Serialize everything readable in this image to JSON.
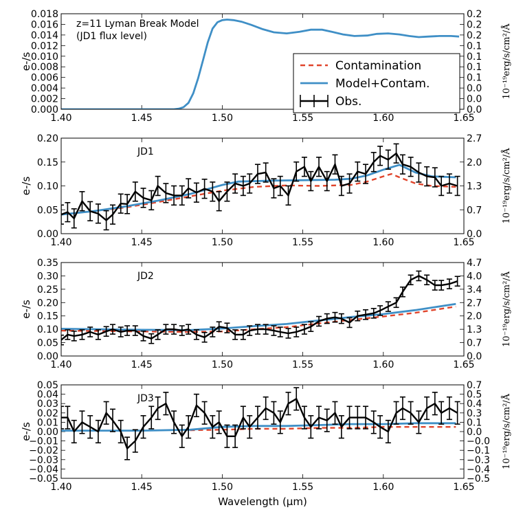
{
  "figure": {
    "xlabel": "Wavelength (μm)",
    "colors": {
      "contamination": "#e0442b",
      "model": "#3f8fc6",
      "observed": "#000000"
    },
    "legend": {
      "placement": "lower-right of top panel",
      "entries": [
        {
          "key": "contamination",
          "label": "Contamination",
          "style": "dashed-line"
        },
        {
          "key": "model",
          "label": "Model+Contam.",
          "style": "solid-line"
        },
        {
          "key": "observed",
          "label": "Obs.",
          "style": "errorbar"
        }
      ]
    }
  },
  "chart_data": [
    {
      "type": "line",
      "annotation": [
        "z=11 Lyman Break Model",
        "(JD1 flux level)"
      ],
      "xlabel": "",
      "ylabel": "e-/s",
      "y2label": "10⁻¹⁹erg/s/cm²/Å",
      "xlim": [
        1.4,
        1.65
      ],
      "ylim": [
        0.0,
        0.018
      ],
      "xticks": [
        "1.40",
        "1.45",
        "1.50",
        "1.55",
        "1.60",
        "1.65"
      ],
      "yticks": [
        "0.000",
        "0.002",
        "0.004",
        "0.006",
        "0.008",
        "0.010",
        "0.012",
        "0.014",
        "0.016",
        "0.018"
      ],
      "y2ticks": [
        "0.0",
        "0.0",
        "0.0",
        "0.1",
        "0.1",
        "0.1",
        "0.1",
        "0.2",
        "0.2",
        "0.2"
      ],
      "series": [
        {
          "key": "model",
          "x": [
            1.4,
            1.47,
            1.473,
            1.476,
            1.479,
            1.482,
            1.485,
            1.488,
            1.491,
            1.494,
            1.497,
            1.5,
            1.503,
            1.507,
            1.512,
            1.518,
            1.525,
            1.532,
            1.54,
            1.548,
            1.555,
            1.562,
            1.568,
            1.575,
            1.582,
            1.59,
            1.596,
            1.603,
            1.61,
            1.616,
            1.622,
            1.628,
            1.635,
            1.642,
            1.647
          ],
          "y": [
            0.0,
            0.0,
            0.0001,
            0.0004,
            0.0012,
            0.003,
            0.0058,
            0.0092,
            0.0126,
            0.0152,
            0.0164,
            0.0168,
            0.0169,
            0.0168,
            0.0165,
            0.0159,
            0.0151,
            0.0145,
            0.0143,
            0.0146,
            0.015,
            0.015,
            0.0146,
            0.0141,
            0.0138,
            0.0139,
            0.0142,
            0.0143,
            0.0141,
            0.0138,
            0.0136,
            0.0137,
            0.0138,
            0.0138,
            0.0137
          ]
        }
      ]
    },
    {
      "type": "line",
      "annotation": [
        "JD1"
      ],
      "xlabel": "",
      "ylabel": "e-/s",
      "y2label": "10⁻¹⁹erg/s/cm²/Å",
      "xlim": [
        1.4,
        1.65
      ],
      "ylim": [
        0.0,
        0.2
      ],
      "xticks": [
        "1.40",
        "1.45",
        "1.50",
        "1.55",
        "1.60",
        "1.65"
      ],
      "yticks": [
        "0.00",
        "0.05",
        "0.10",
        "0.15",
        "0.20"
      ],
      "y2ticks": [
        "0.0",
        "0.7",
        "1.3",
        "2.0",
        "2.7"
      ],
      "series": [
        {
          "key": "contamination",
          "x": [
            1.4,
            1.42,
            1.44,
            1.46,
            1.48,
            1.5,
            1.52,
            1.54,
            1.56,
            1.58,
            1.59,
            1.6,
            1.605,
            1.61,
            1.62,
            1.63,
            1.645
          ],
          "y": [
            0.04,
            0.047,
            0.055,
            0.066,
            0.078,
            0.09,
            0.098,
            0.101,
            0.1,
            0.102,
            0.109,
            0.12,
            0.125,
            0.118,
            0.105,
            0.1,
            0.098
          ]
        },
        {
          "key": "model",
          "x": [
            1.4,
            1.42,
            1.44,
            1.46,
            1.48,
            1.5,
            1.51,
            1.53,
            1.55,
            1.57,
            1.58,
            1.59,
            1.6,
            1.61,
            1.62,
            1.63,
            1.645
          ],
          "y": [
            0.04,
            0.047,
            0.057,
            0.069,
            0.083,
            0.102,
            0.109,
            0.111,
            0.112,
            0.113,
            0.115,
            0.122,
            0.134,
            0.144,
            0.128,
            0.12,
            0.118
          ]
        },
        {
          "key": "observed",
          "x": [
            1.4,
            1.404,
            1.408,
            1.413,
            1.418,
            1.423,
            1.428,
            1.432,
            1.437,
            1.441,
            1.446,
            1.451,
            1.456,
            1.46,
            1.465,
            1.47,
            1.475,
            1.479,
            1.484,
            1.489,
            1.494,
            1.498,
            1.503,
            1.508,
            1.513,
            1.517,
            1.522,
            1.527,
            1.532,
            1.536,
            1.541,
            1.546,
            1.551,
            1.555,
            1.56,
            1.565,
            1.57,
            1.574,
            1.579,
            1.584,
            1.589,
            1.594,
            1.598,
            1.603,
            1.608,
            1.612,
            1.617,
            1.622,
            1.627,
            1.632,
            1.636,
            1.641,
            1.646
          ],
          "y": [
            0.04,
            0.045,
            0.032,
            0.068,
            0.047,
            0.042,
            0.028,
            0.04,
            0.063,
            0.062,
            0.088,
            0.075,
            0.07,
            0.1,
            0.085,
            0.08,
            0.08,
            0.095,
            0.086,
            0.094,
            0.088,
            0.068,
            0.088,
            0.105,
            0.1,
            0.105,
            0.125,
            0.128,
            0.095,
            0.1,
            0.08,
            0.13,
            0.14,
            0.11,
            0.14,
            0.11,
            0.145,
            0.1,
            0.105,
            0.13,
            0.125,
            0.15,
            0.163,
            0.155,
            0.168,
            0.145,
            0.14,
            0.128,
            0.12,
            0.118,
            0.1,
            0.105,
            0.1
          ],
          "yerr": 0.02
        }
      ]
    },
    {
      "type": "line",
      "annotation": [
        "JD2"
      ],
      "xlabel": "",
      "ylabel": "e-/s",
      "y2label": "10⁻¹⁹erg/s/cm²/Å",
      "xlim": [
        1.4,
        1.65
      ],
      "ylim": [
        0.0,
        0.35
      ],
      "xticks": [
        "1.40",
        "1.45",
        "1.50",
        "1.55",
        "1.60",
        "1.65"
      ],
      "yticks": [
        "0.00",
        "0.05",
        "0.10",
        "0.15",
        "0.20",
        "0.25",
        "0.30",
        "0.35"
      ],
      "y2ticks": [
        "0.0",
        "0.7",
        "1.3",
        "2.0",
        "2.7",
        "3.4",
        "4.0",
        "4.7"
      ],
      "series": [
        {
          "key": "contamination",
          "x": [
            1.4,
            1.45,
            1.48,
            1.5,
            1.52,
            1.54,
            1.56,
            1.58,
            1.6,
            1.62,
            1.645
          ],
          "y": [
            0.095,
            0.092,
            0.09,
            0.092,
            0.1,
            0.108,
            0.122,
            0.135,
            0.148,
            0.162,
            0.185
          ]
        },
        {
          "key": "model",
          "x": [
            1.4,
            1.45,
            1.48,
            1.5,
            1.52,
            1.54,
            1.56,
            1.58,
            1.6,
            1.62,
            1.645
          ],
          "y": [
            0.102,
            0.098,
            0.097,
            0.103,
            0.112,
            0.12,
            0.133,
            0.146,
            0.157,
            0.172,
            0.195
          ]
        },
        {
          "key": "observed",
          "x": [
            1.4,
            1.404,
            1.408,
            1.413,
            1.418,
            1.423,
            1.428,
            1.432,
            1.437,
            1.441,
            1.446,
            1.451,
            1.456,
            1.46,
            1.465,
            1.47,
            1.475,
            1.479,
            1.484,
            1.489,
            1.494,
            1.498,
            1.503,
            1.508,
            1.513,
            1.517,
            1.522,
            1.527,
            1.532,
            1.536,
            1.541,
            1.546,
            1.551,
            1.555,
            1.56,
            1.565,
            1.57,
            1.574,
            1.579,
            1.584,
            1.589,
            1.594,
            1.598,
            1.603,
            1.608,
            1.612,
            1.617,
            1.622,
            1.627,
            1.632,
            1.636,
            1.641,
            1.646
          ],
          "y": [
            0.06,
            0.08,
            0.075,
            0.08,
            0.09,
            0.08,
            0.092,
            0.1,
            0.09,
            0.095,
            0.095,
            0.075,
            0.065,
            0.08,
            0.1,
            0.1,
            0.095,
            0.1,
            0.08,
            0.07,
            0.09,
            0.11,
            0.105,
            0.08,
            0.08,
            0.095,
            0.1,
            0.1,
            0.095,
            0.09,
            0.085,
            0.09,
            0.1,
            0.11,
            0.13,
            0.14,
            0.145,
            0.14,
            0.125,
            0.15,
            0.155,
            0.16,
            0.17,
            0.185,
            0.2,
            0.24,
            0.285,
            0.3,
            0.285,
            0.265,
            0.265,
            0.27,
            0.28
          ],
          "yerr": 0.018
        }
      ]
    },
    {
      "type": "line",
      "annotation": [
        "JD3"
      ],
      "xlabel": "Wavelength (μm)",
      "ylabel": "e-/s",
      "y2label": "10⁻¹⁹erg/s/cm²/Å",
      "xlim": [
        1.4,
        1.65
      ],
      "ylim": [
        -0.05,
        0.05
      ],
      "xticks": [
        "1.40",
        "1.45",
        "1.50",
        "1.55",
        "1.60",
        "1.65"
      ],
      "yticks": [
        "−0.05",
        "−0.04",
        "−0.03",
        "−0.02",
        "−0.01",
        "0.00",
        "0.01",
        "0.02",
        "0.03",
        "0.04",
        "0.05"
      ],
      "y2ticks": [
        "−0.5",
        "−0.4",
        "−0.3",
        "−0.1",
        "−0.0",
        "0.0",
        "0.1",
        "0.3",
        "0.4",
        "0.5",
        "0.7"
      ],
      "series": [
        {
          "key": "contamination",
          "x": [
            1.48,
            1.5,
            1.52,
            1.54,
            1.56,
            1.58,
            1.6,
            1.62,
            1.645
          ],
          "y": [
            0.0015,
            0.002,
            0.003,
            0.003,
            0.004,
            0.004,
            0.005,
            0.005,
            0.005
          ]
        },
        {
          "key": "model",
          "x": [
            1.4,
            1.45,
            1.48,
            1.5,
            1.52,
            1.54,
            1.56,
            1.58,
            1.6,
            1.62,
            1.645
          ],
          "y": [
            0.001,
            0.001,
            0.002,
            0.005,
            0.006,
            0.006,
            0.007,
            0.008,
            0.008,
            0.009,
            0.009
          ]
        },
        {
          "key": "observed",
          "x": [
            1.4,
            1.404,
            1.408,
            1.413,
            1.418,
            1.423,
            1.428,
            1.432,
            1.437,
            1.441,
            1.446,
            1.451,
            1.456,
            1.46,
            1.465,
            1.47,
            1.475,
            1.479,
            1.484,
            1.489,
            1.494,
            1.498,
            1.503,
            1.508,
            1.513,
            1.517,
            1.522,
            1.527,
            1.532,
            1.536,
            1.541,
            1.546,
            1.551,
            1.555,
            1.56,
            1.565,
            1.57,
            1.574,
            1.579,
            1.584,
            1.589,
            1.594,
            1.598,
            1.603,
            1.608,
            1.612,
            1.617,
            1.622,
            1.627,
            1.632,
            1.636,
            1.641,
            1.646
          ],
          "y": [
            0.015,
            0.015,
            0.0,
            0.01,
            0.005,
            0.0,
            0.02,
            0.012,
            0.0,
            -0.018,
            -0.01,
            0.005,
            0.015,
            0.025,
            0.03,
            0.01,
            -0.005,
            0.005,
            0.028,
            0.02,
            0.005,
            0.01,
            -0.005,
            -0.005,
            0.015,
            0.005,
            0.015,
            0.025,
            0.02,
            0.01,
            0.03,
            0.035,
            0.015,
            0.005,
            0.015,
            0.012,
            0.02,
            0.005,
            0.015,
            0.015,
            0.015,
            0.01,
            0.005,
            0.0,
            0.02,
            0.025,
            0.02,
            0.01,
            0.025,
            0.03,
            0.02,
            0.025,
            0.02
          ],
          "yerr": 0.012
        }
      ]
    }
  ]
}
